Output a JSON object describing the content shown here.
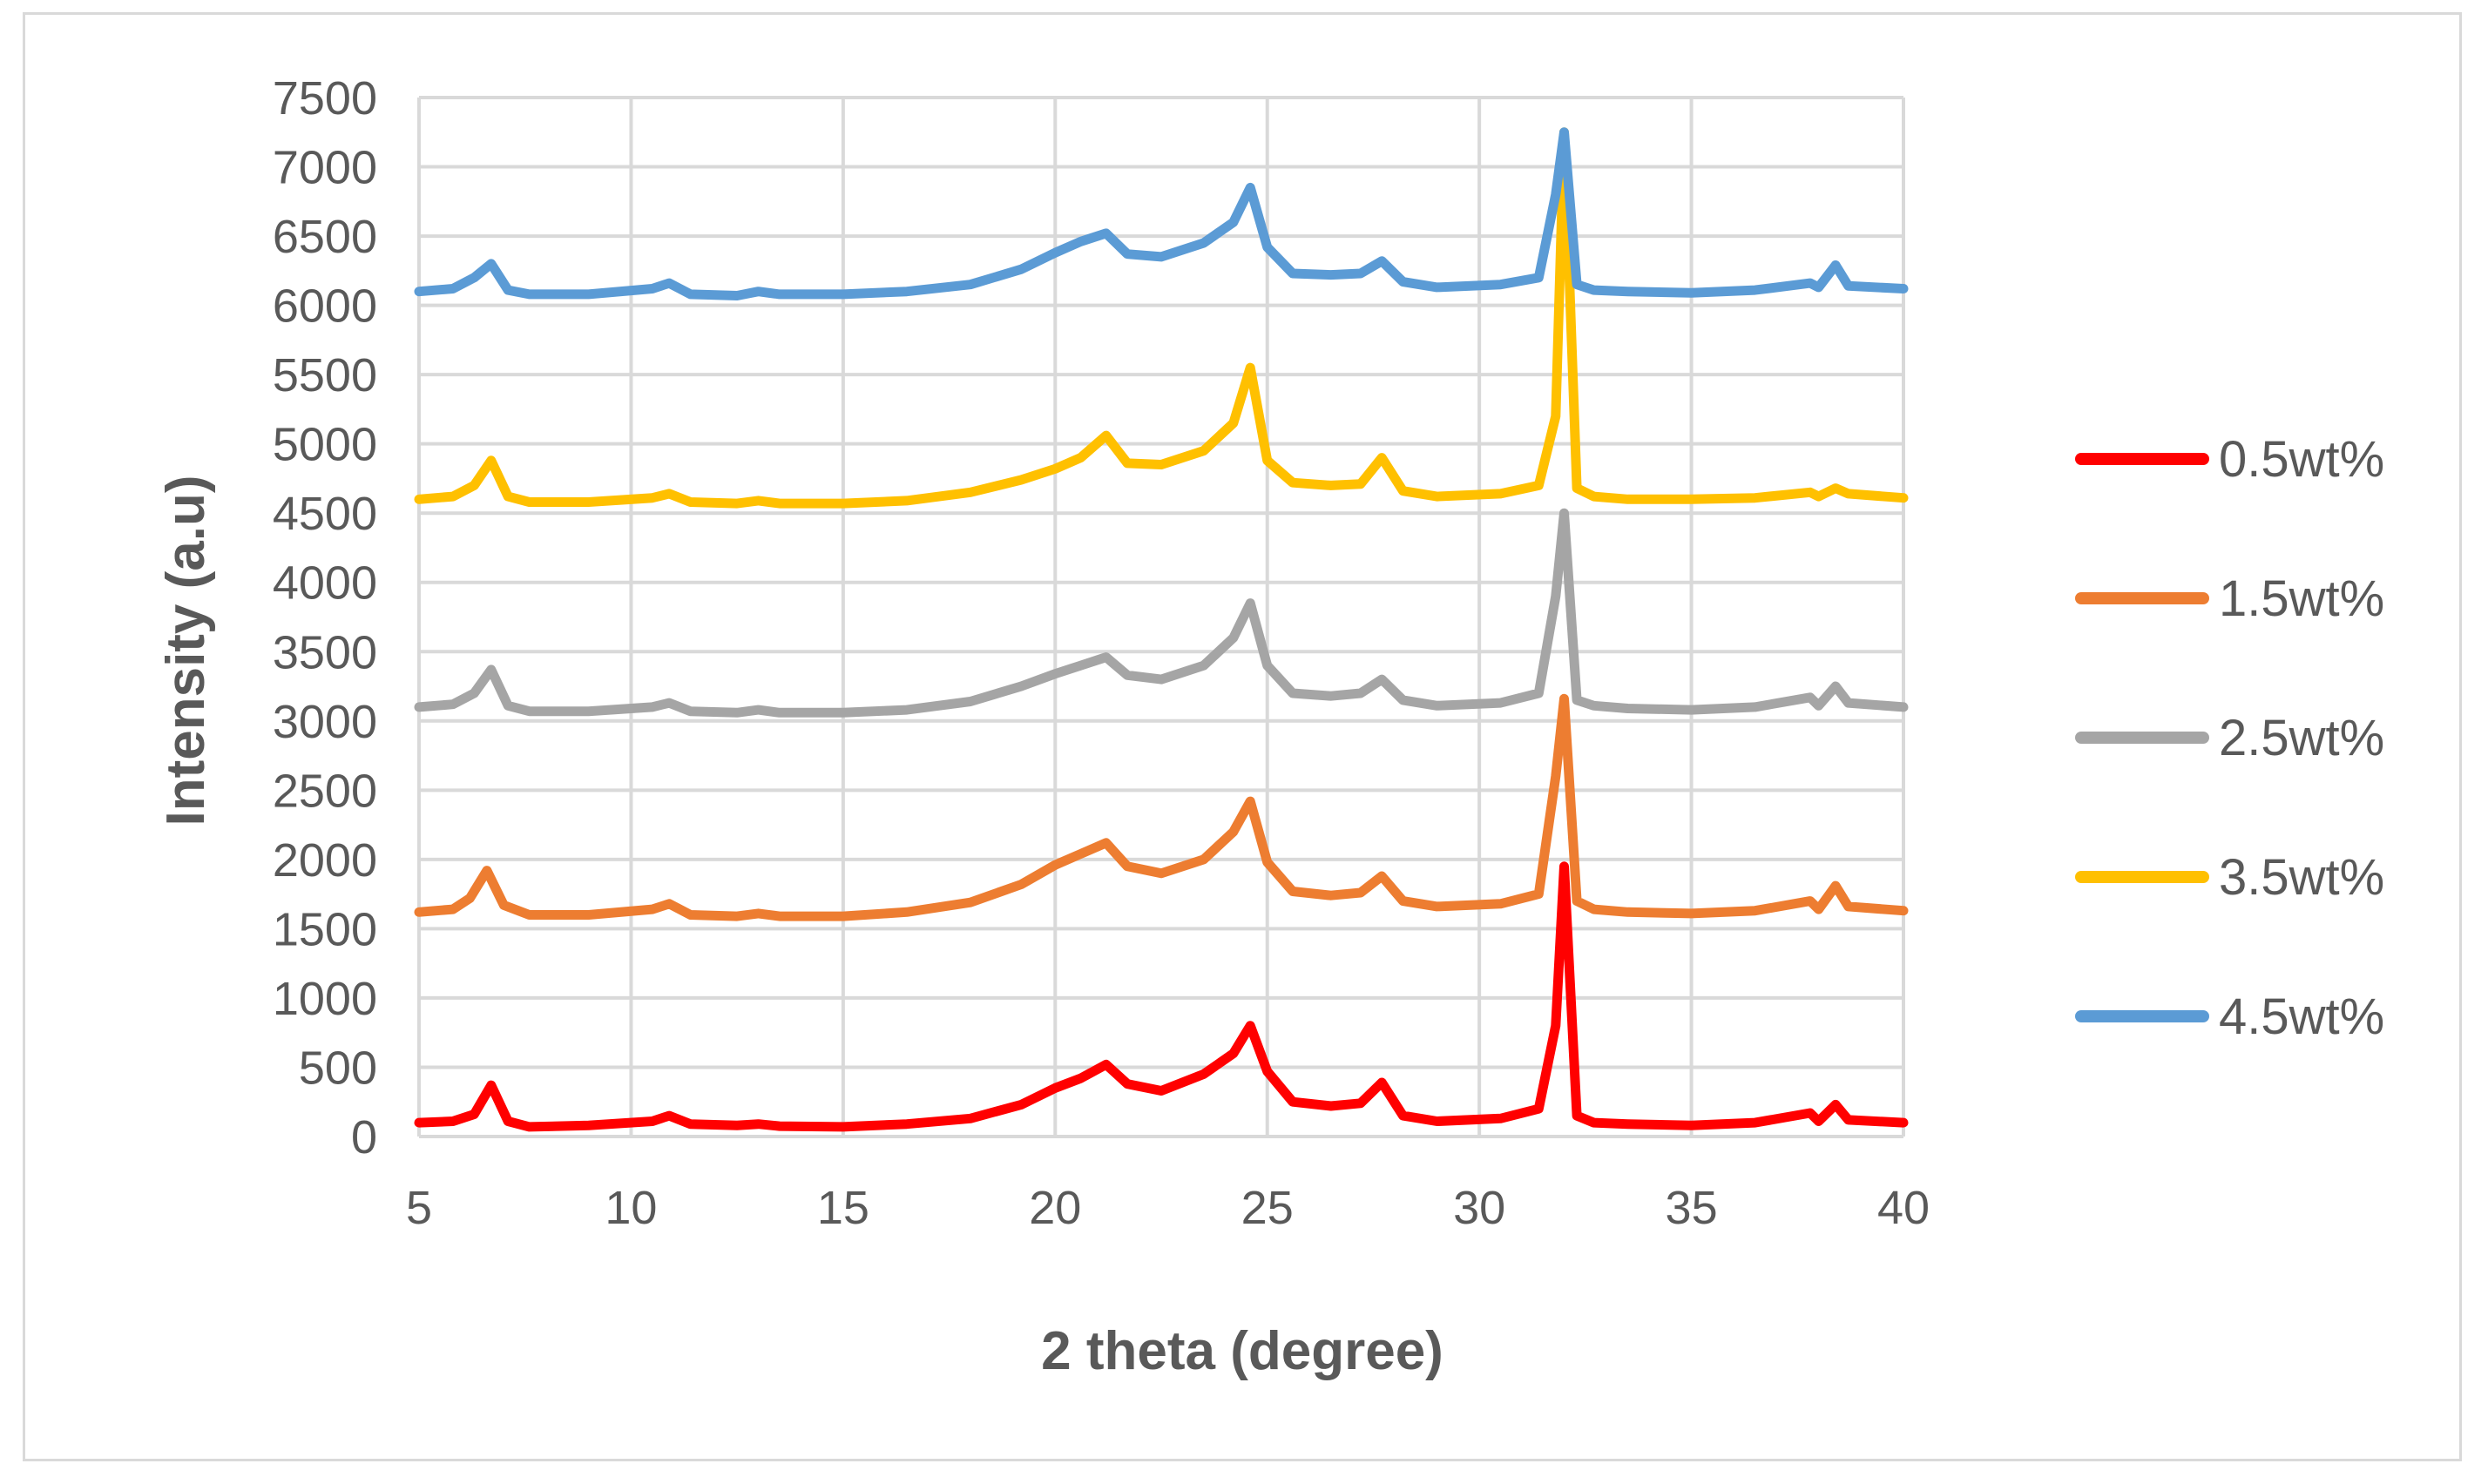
{
  "chart_data": {
    "type": "line",
    "title": "",
    "xlabel": "2 theta (degree)",
    "ylabel": "Intensity (a.u)",
    "xlim": [
      5,
      40
    ],
    "ylim": [
      0,
      7500
    ],
    "xticks": [
      5,
      10,
      15,
      20,
      25,
      30,
      35,
      40
    ],
    "yticks": [
      0,
      500,
      1000,
      1500,
      2000,
      2500,
      3000,
      3500,
      4000,
      4500,
      5000,
      5500,
      6000,
      6500,
      7000,
      7500
    ],
    "grid": true,
    "legend_position": "right",
    "series": [
      {
        "name": "0.5wt%",
        "color": "#ff0000",
        "x": [
          5,
          5.8,
          6.3,
          6.7,
          7.1,
          7.6,
          9,
          10.5,
          10.9,
          11.4,
          12.5,
          13,
          13.5,
          15,
          16.5,
          18,
          19.2,
          20,
          20.6,
          21.2,
          21.7,
          22.5,
          23.5,
          24.2,
          24.6,
          25.0,
          25.6,
          26.5,
          27.2,
          27.7,
          28.2,
          29,
          30.5,
          31.4,
          31.8,
          32.0,
          32.3,
          32.7,
          33.5,
          35,
          36.5,
          37.8,
          38.0,
          38.4,
          38.7,
          40
        ],
        "y": [
          100,
          110,
          160,
          370,
          110,
          70,
          80,
          110,
          150,
          90,
          80,
          90,
          75,
          70,
          90,
          130,
          230,
          350,
          420,
          520,
          380,
          330,
          450,
          600,
          800,
          470,
          250,
          220,
          240,
          390,
          150,
          110,
          130,
          200,
          800,
          1950,
          150,
          100,
          90,
          80,
          100,
          170,
          110,
          230,
          120,
          100
        ]
      },
      {
        "name": "1.5wt%",
        "color": "#ed7d31",
        "x": [
          5,
          5.8,
          6.2,
          6.6,
          7.0,
          7.6,
          9,
          10.5,
          10.9,
          11.4,
          12.5,
          13,
          13.5,
          15,
          16.5,
          18,
          19.2,
          20,
          20.6,
          21.2,
          21.7,
          22.5,
          23.5,
          24.2,
          24.6,
          25.0,
          25.6,
          26.5,
          27.2,
          27.7,
          28.2,
          29,
          30.5,
          31.4,
          31.8,
          32.0,
          32.3,
          32.7,
          33.5,
          35,
          36.5,
          37.8,
          38.0,
          38.4,
          38.7,
          40
        ],
        "y": [
          1620,
          1640,
          1720,
          1920,
          1670,
          1600,
          1600,
          1640,
          1680,
          1600,
          1590,
          1610,
          1590,
          1590,
          1620,
          1690,
          1820,
          1960,
          2040,
          2120,
          1950,
          1900,
          2000,
          2200,
          2420,
          1980,
          1770,
          1740,
          1760,
          1880,
          1700,
          1660,
          1680,
          1750,
          2600,
          3160,
          1700,
          1640,
          1620,
          1610,
          1630,
          1700,
          1640,
          1810,
          1660,
          1630
        ]
      },
      {
        "name": "2.5wt%",
        "color": "#a5a5a5",
        "x": [
          5,
          5.8,
          6.3,
          6.7,
          7.1,
          7.6,
          9,
          10.5,
          10.9,
          11.4,
          12.5,
          13,
          13.5,
          15,
          16.5,
          18,
          19.2,
          20,
          20.6,
          21.2,
          21.7,
          22.5,
          23.5,
          24.2,
          24.6,
          25.0,
          25.6,
          26.5,
          27.2,
          27.7,
          28.2,
          29,
          30.5,
          31.4,
          31.8,
          32.0,
          32.3,
          32.7,
          33.5,
          35,
          36.5,
          37.8,
          38.0,
          38.4,
          38.7,
          40
        ],
        "y": [
          3100,
          3120,
          3200,
          3370,
          3110,
          3070,
          3070,
          3100,
          3130,
          3070,
          3060,
          3080,
          3060,
          3060,
          3080,
          3140,
          3250,
          3340,
          3400,
          3460,
          3330,
          3300,
          3400,
          3600,
          3850,
          3400,
          3200,
          3180,
          3200,
          3300,
          3150,
          3110,
          3130,
          3200,
          3900,
          4500,
          3150,
          3110,
          3090,
          3080,
          3100,
          3170,
          3110,
          3250,
          3130,
          3100
        ]
      },
      {
        "name": "3.5wt%",
        "color": "#ffc000",
        "x": [
          5,
          5.8,
          6.3,
          6.7,
          7.1,
          7.6,
          9,
          10.5,
          10.9,
          11.4,
          12.5,
          13,
          13.5,
          15,
          16.5,
          18,
          19.2,
          20,
          20.6,
          21.2,
          21.7,
          22.5,
          23.5,
          24.2,
          24.6,
          25.0,
          25.6,
          26.5,
          27.2,
          27.7,
          28.2,
          29,
          30.5,
          31.4,
          31.8,
          32.0,
          32.3,
          32.7,
          33.5,
          35,
          36.5,
          37.8,
          38.0,
          38.4,
          38.7,
          40
        ],
        "y": [
          4600,
          4620,
          4700,
          4880,
          4620,
          4580,
          4580,
          4610,
          4640,
          4580,
          4570,
          4590,
          4570,
          4570,
          4590,
          4650,
          4740,
          4820,
          4900,
          5060,
          4860,
          4850,
          4950,
          5150,
          5550,
          4880,
          4720,
          4700,
          4710,
          4900,
          4660,
          4620,
          4640,
          4700,
          5200,
          7250,
          4680,
          4620,
          4600,
          4600,
          4610,
          4650,
          4620,
          4680,
          4640,
          4610
        ]
      },
      {
        "name": "4.5wt%",
        "color": "#5b9bd5",
        "x": [
          5,
          5.8,
          6.3,
          6.7,
          7.1,
          7.6,
          9,
          10.5,
          10.9,
          11.4,
          12.5,
          13,
          13.5,
          15,
          16.5,
          18,
          19.2,
          20,
          20.6,
          21.2,
          21.7,
          22.5,
          23.5,
          24.2,
          24.6,
          25.0,
          25.6,
          26.5,
          27.2,
          27.7,
          28.2,
          29,
          30.5,
          31.4,
          31.8,
          32.0,
          32.3,
          32.7,
          33.5,
          35,
          36.5,
          37.8,
          38.0,
          38.4,
          38.7,
          40
        ],
        "y": [
          6100,
          6120,
          6200,
          6300,
          6110,
          6080,
          6080,
          6120,
          6160,
          6080,
          6070,
          6100,
          6080,
          6080,
          6100,
          6150,
          6260,
          6380,
          6460,
          6520,
          6370,
          6350,
          6450,
          6600,
          6850,
          6420,
          6230,
          6220,
          6230,
          6320,
          6170,
          6130,
          6150,
          6200,
          6800,
          7250,
          6150,
          6110,
          6100,
          6090,
          6110,
          6160,
          6130,
          6290,
          6140,
          6120
        ]
      }
    ]
  }
}
